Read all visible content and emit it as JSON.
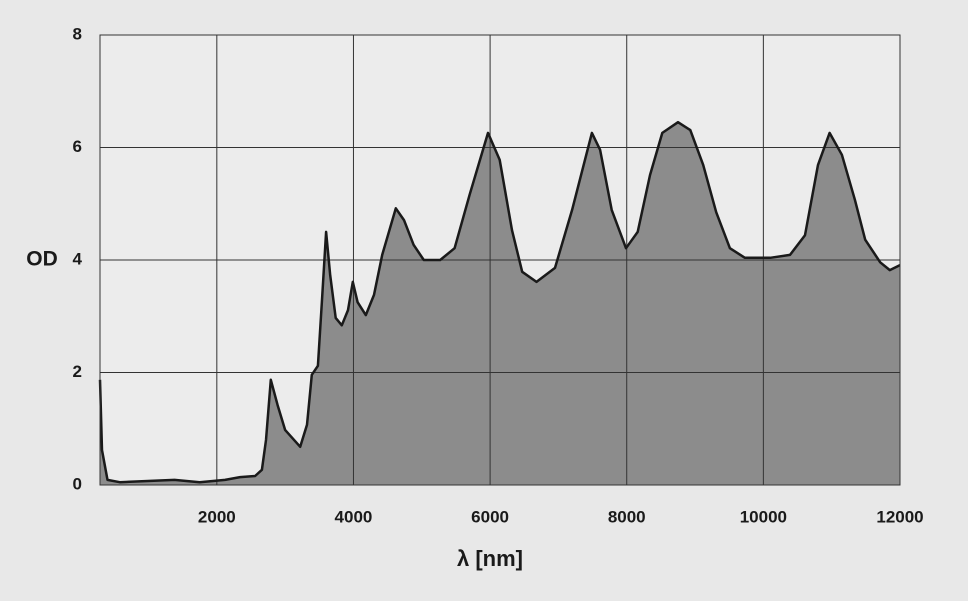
{
  "chart_data": {
    "type": "area",
    "x_label": "λ [nm]",
    "y_label": "OD",
    "x": [
      290,
      320,
      400,
      580,
      1380,
      1750,
      2120,
      2340,
      2560,
      2660,
      2720,
      2790,
      2890,
      3000,
      3220,
      3320,
      3390,
      3480,
      3540,
      3600,
      3660,
      3740,
      3830,
      3920,
      3990,
      4060,
      4180,
      4300,
      4420,
      4620,
      4740,
      4880,
      5030,
      5270,
      5480,
      5700,
      5970,
      6140,
      6320,
      6470,
      6680,
      6950,
      7200,
      7490,
      7610,
      7780,
      7990,
      8160,
      8340,
      8520,
      8750,
      8930,
      9120,
      9310,
      9510,
      9730,
      10100,
      10390,
      10610,
      10800,
      10970,
      11150,
      11340,
      11490,
      11710,
      11850,
      12000
    ],
    "series": [
      {
        "color": "#8c8c8c",
        "values": [
          1.87,
          0.62,
          0.09,
          0.05,
          0.09,
          0.05,
          0.09,
          0.14,
          0.16,
          0.27,
          0.8,
          1.87,
          1.42,
          0.98,
          0.68,
          1.07,
          1.96,
          2.12,
          3.29,
          4.5,
          3.73,
          2.97,
          2.84,
          3.11,
          3.61,
          3.25,
          3.02,
          3.38,
          4.09,
          4.92,
          4.71,
          4.27,
          4.0,
          4.0,
          4.21,
          5.16,
          6.26,
          5.78,
          4.53,
          3.79,
          3.61,
          3.86,
          4.89,
          6.26,
          5.96,
          4.89,
          4.21,
          4.5,
          5.51,
          6.26,
          6.45,
          6.31,
          5.69,
          4.85,
          4.21,
          4.04,
          4.04,
          4.09,
          4.44,
          5.69,
          6.26,
          5.87,
          5.07,
          4.36,
          3.96,
          3.82,
          3.91
        ]
      }
    ],
    "xlim": [
      290,
      12000
    ],
    "xticks": [
      2000,
      4000,
      6000,
      8000,
      10000,
      12000
    ],
    "ylim": [
      0,
      8
    ],
    "yticks": [
      0,
      2,
      4,
      6,
      8
    ],
    "grid": true
  }
}
